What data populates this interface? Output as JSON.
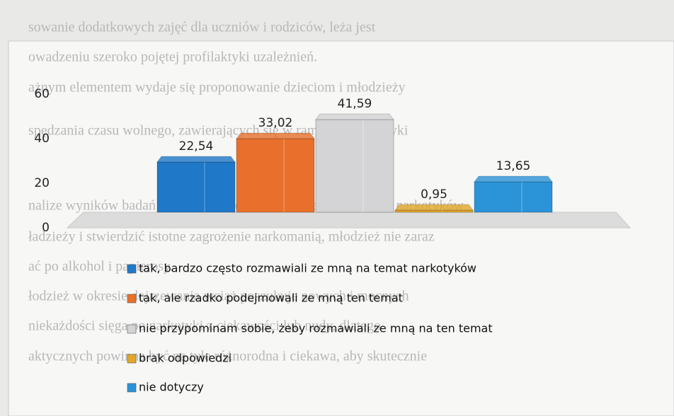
{
  "background_text": [
    "sowanie dodatkowych zajęć dla uczniów i rodziców, leża jest",
    "owadzeniu szeroko pojętej profilaktyki uzależnień.",
    "ażnym elementem wydaje się proponowanie dzieciom i młodzieży",
    "spędzania czasu wolnego, zawierających się w ramach profilaktyki",
    "nalize wyników badań można stwierdzić, że problem zażywania narkotyków",
    "ładzieży i stwierdzić istotne zagrożenie narkomanią, młodzież nie zaraz",
    "ać po alkohol i papierosy.",
    "łodzież w okresie dojrzewania wciąż poszukuje nowych i mocnych",
    "niekażdości sięga po narkotyki z ciekawości lub nudy, dlatego",
    "aktycznych powinna być na tyle różnorodna i ciekawa, aby skutecznie"
  ],
  "chart_data": {
    "type": "bar3d",
    "categories": [
      "tak, bardzo często rozmawiali ze mną na temat narkotyków",
      "tak, ale rzadko podejmowali ze mną ten temat",
      "nie przypominam sobie, żeby rozmawiali ze mną na ten temat",
      "brak odpowiedzi",
      "nie dotyczy"
    ],
    "values": [
      22.54,
      33.02,
      41.59,
      0.95,
      13.65
    ],
    "value_labels": [
      "22,54",
      "33,02",
      "41,59",
      "0,95",
      "13,65"
    ],
    "colors": [
      "#1f78c8",
      "#e8702c",
      "#d4d4d6",
      "#e3a82a",
      "#2b93d8"
    ],
    "ylim": [
      0,
      60
    ],
    "yticks": [
      0,
      20,
      40,
      60
    ]
  }
}
